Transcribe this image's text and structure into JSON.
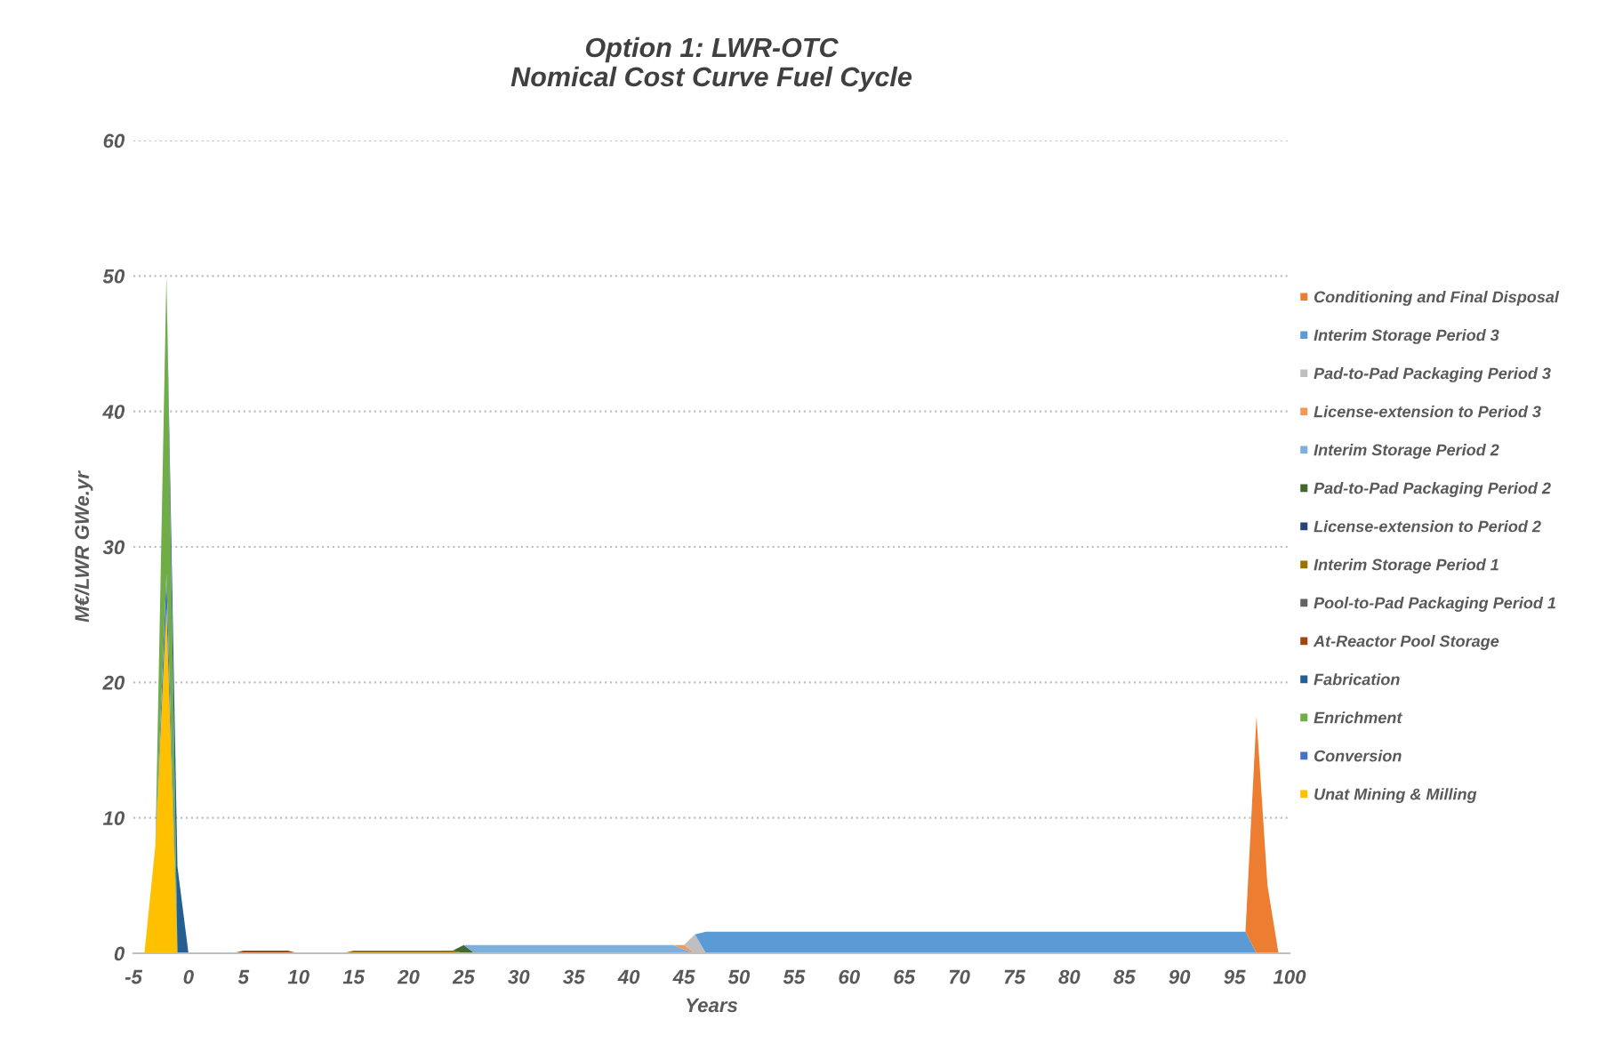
{
  "chart_data": {
    "type": "area",
    "stacked": true,
    "title": "Option 1: LWR-OTC\nNomical Cost Curve Fuel Cycle",
    "xlabel": "Years",
    "ylabel": "M€/LWR GWe.yr",
    "x": [
      -5,
      -4,
      -3,
      -2,
      -1,
      0,
      4,
      5,
      9,
      10,
      14,
      15,
      24,
      25,
      26,
      44,
      45,
      46,
      47,
      95,
      96,
      97,
      98,
      99,
      100
    ],
    "series": [
      {
        "name": "Unat Mining & Milling",
        "color": "#ffc000",
        "values": [
          0,
          0,
          8,
          25.5,
          0,
          0,
          0,
          0,
          0,
          0,
          0,
          0,
          0,
          0,
          0,
          0,
          0,
          0,
          0,
          0,
          0,
          0,
          0,
          0,
          0
        ]
      },
      {
        "name": "Conversion",
        "color": "#4472c4",
        "values": [
          0,
          0,
          0,
          2.5,
          0,
          0,
          0,
          0,
          0,
          0,
          0,
          0,
          0,
          0,
          0,
          0,
          0,
          0,
          0,
          0,
          0,
          0,
          0,
          0,
          0
        ]
      },
      {
        "name": "Enrichment",
        "color": "#70ad47",
        "values": [
          0,
          0,
          0,
          22,
          0,
          0,
          0,
          0,
          0,
          0,
          0,
          0,
          0,
          0,
          0,
          0,
          0,
          0,
          0,
          0,
          0,
          0,
          0,
          0,
          0
        ]
      },
      {
        "name": "Fabrication",
        "color": "#255e91",
        "values": [
          null,
          null,
          null,
          0,
          6.4,
          0,
          null,
          null,
          null,
          null,
          null,
          null,
          null,
          null,
          null,
          null,
          null,
          null,
          null,
          null,
          null,
          null,
          null,
          null,
          null
        ]
      },
      {
        "name": "At-Reactor Pool Storage",
        "color": "#9e480e",
        "values": [
          null,
          null,
          null,
          null,
          null,
          null,
          0,
          0.2,
          0.2,
          0,
          null,
          null,
          null,
          null,
          null,
          null,
          null,
          null,
          null,
          null,
          null,
          null,
          null,
          null,
          null
        ]
      },
      {
        "name": "Pool-to-Pad Packaging Period 1",
        "color": "#636363",
        "values": [
          null,
          null,
          null,
          null,
          null,
          null,
          null,
          null,
          null,
          null,
          null,
          null,
          null,
          null,
          null,
          null,
          null,
          null,
          null,
          null,
          null,
          null,
          null,
          null,
          null
        ]
      },
      {
        "name": "Interim Storage Period 1",
        "color": "#997300",
        "values": [
          null,
          null,
          null,
          null,
          null,
          null,
          null,
          null,
          null,
          null,
          0,
          0.2,
          0.2,
          0,
          null,
          null,
          null,
          null,
          null,
          null,
          null,
          null,
          null,
          null,
          null
        ]
      },
      {
        "name": "License-extension to Period 2",
        "color": "#264478",
        "values": [
          null,
          null,
          null,
          null,
          null,
          null,
          null,
          null,
          null,
          null,
          null,
          null,
          null,
          null,
          null,
          null,
          null,
          null,
          null,
          null,
          null,
          null,
          null,
          null,
          null
        ]
      },
      {
        "name": "Pad-to-Pad Packaging Period 2",
        "color": "#43682b",
        "values": [
          null,
          null,
          null,
          null,
          null,
          null,
          null,
          null,
          null,
          null,
          null,
          null,
          0,
          0.6,
          0,
          null,
          null,
          null,
          null,
          null,
          null,
          null,
          null,
          null,
          null
        ]
      },
      {
        "name": "Interim Storage Period 2",
        "color": "#7cafdd",
        "values": [
          null,
          null,
          null,
          null,
          null,
          null,
          null,
          null,
          null,
          null,
          null,
          null,
          null,
          0,
          0.6,
          0.6,
          0.3,
          0,
          null,
          null,
          null,
          null,
          null,
          null,
          null
        ]
      },
      {
        "name": "License-extension to Period 3",
        "color": "#f1975a",
        "values": [
          null,
          null,
          null,
          null,
          null,
          null,
          null,
          null,
          null,
          null,
          null,
          null,
          null,
          null,
          null,
          0,
          0.3,
          0,
          null,
          null,
          null,
          null,
          null,
          null,
          null
        ]
      },
      {
        "name": "Pad-to-Pad Packaging Period 3",
        "color": "#bfbfbf",
        "values": [
          null,
          null,
          null,
          null,
          null,
          null,
          null,
          null,
          null,
          null,
          null,
          null,
          null,
          null,
          null,
          null,
          0,
          1.4,
          0,
          null,
          null,
          null,
          null,
          null,
          null
        ]
      },
      {
        "name": "Interim Storage Period 3",
        "color": "#5b9bd5",
        "values": [
          null,
          null,
          null,
          null,
          null,
          null,
          null,
          null,
          null,
          null,
          null,
          null,
          null,
          null,
          null,
          null,
          null,
          0,
          1.6,
          1.6,
          1.6,
          0,
          null,
          null,
          null
        ]
      },
      {
        "name": "Conditioning and Final Disposal",
        "color": "#ed7d31",
        "values": [
          null,
          null,
          null,
          null,
          null,
          null,
          null,
          null,
          null,
          null,
          null,
          null,
          null,
          null,
          null,
          null,
          null,
          null,
          null,
          null,
          0,
          17.5,
          5,
          0,
          null
        ]
      }
    ],
    "xlim": [
      -5,
      100
    ],
    "xticks": [
      -5,
      0,
      5,
      10,
      15,
      20,
      25,
      30,
      35,
      40,
      45,
      50,
      55,
      60,
      65,
      70,
      75,
      80,
      85,
      90,
      95,
      100
    ],
    "ylim": [
      0,
      60
    ],
    "yticks": [
      0,
      10,
      20,
      30,
      40,
      50,
      60
    ],
    "grid": "y",
    "legend": "right"
  }
}
